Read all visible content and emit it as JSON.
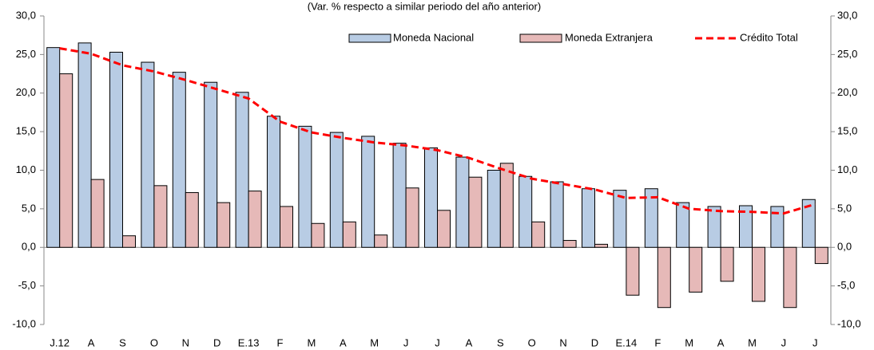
{
  "chart_data": {
    "type": "bar",
    "subtitle": "(Var. % respecto a similar periodo del año anterior)",
    "categories": [
      "J.12",
      "A",
      "S",
      "O",
      "N",
      "D",
      "E.13",
      "F",
      "M",
      "A",
      "M",
      "J",
      "J",
      "A",
      "S",
      "O",
      "N",
      "D",
      "E.14",
      "F",
      "M",
      "A",
      "M",
      "J",
      "J"
    ],
    "series": [
      {
        "name": "Moneda Nacional",
        "type": "bar",
        "color": "#b8cce4",
        "values": [
          25.9,
          26.5,
          25.3,
          24.0,
          22.7,
          21.4,
          20.1,
          17.0,
          15.7,
          14.9,
          14.4,
          13.5,
          12.9,
          11.7,
          10.0,
          9.2,
          8.5,
          7.6,
          7.4,
          7.6,
          5.8,
          5.3,
          5.4,
          5.3,
          6.2
        ]
      },
      {
        "name": "Moneda Extranjera",
        "type": "bar",
        "color": "#e6b9b8",
        "values": [
          22.5,
          8.8,
          1.5,
          8.0,
          7.1,
          5.8,
          7.3,
          5.3,
          3.1,
          3.3,
          1.6,
          7.7,
          4.8,
          9.1,
          10.9,
          3.3,
          0.9,
          0.4,
          -6.2,
          -7.8,
          -5.8,
          -4.4,
          -7.0,
          -7.8,
          -2.1
        ]
      },
      {
        "name": "Crédito Total",
        "type": "line",
        "color": "#ff0000",
        "values": [
          25.8,
          25.1,
          23.6,
          22.8,
          21.7,
          20.5,
          19.3,
          16.3,
          14.9,
          14.2,
          13.6,
          13.2,
          12.6,
          11.6,
          10.2,
          8.9,
          8.2,
          7.5,
          6.4,
          6.5,
          5.0,
          4.7,
          4.6,
          4.4,
          5.6
        ]
      }
    ],
    "ylim": [
      -10,
      30
    ],
    "yticks": [
      {
        "value": -10,
        "label": "-10,0"
      },
      {
        "value": -5,
        "label": "-5,0"
      },
      {
        "value": 0,
        "label": "0,0"
      },
      {
        "value": 5,
        "label": "5,0"
      },
      {
        "value": 10,
        "label": "10,0"
      },
      {
        "value": 15,
        "label": "15,0"
      },
      {
        "value": 20,
        "label": "20,0"
      },
      {
        "value": 25,
        "label": "25,0"
      },
      {
        "value": 30,
        "label": "30,0"
      }
    ],
    "y2lim": [
      -10,
      30
    ],
    "y2ticks": [
      {
        "value": -10,
        "label": "-10,0"
      },
      {
        "value": -5,
        "label": "-5,0"
      },
      {
        "value": 0,
        "label": "0,0"
      },
      {
        "value": 5,
        "label": "5,0"
      },
      {
        "value": 10,
        "label": "10,0"
      },
      {
        "value": 15,
        "label": "15,0"
      },
      {
        "value": 20,
        "label": "20,0"
      },
      {
        "value": 25,
        "label": "25,0"
      },
      {
        "value": 30,
        "label": "30,0"
      }
    ],
    "grid": false,
    "legend": "top-right"
  }
}
